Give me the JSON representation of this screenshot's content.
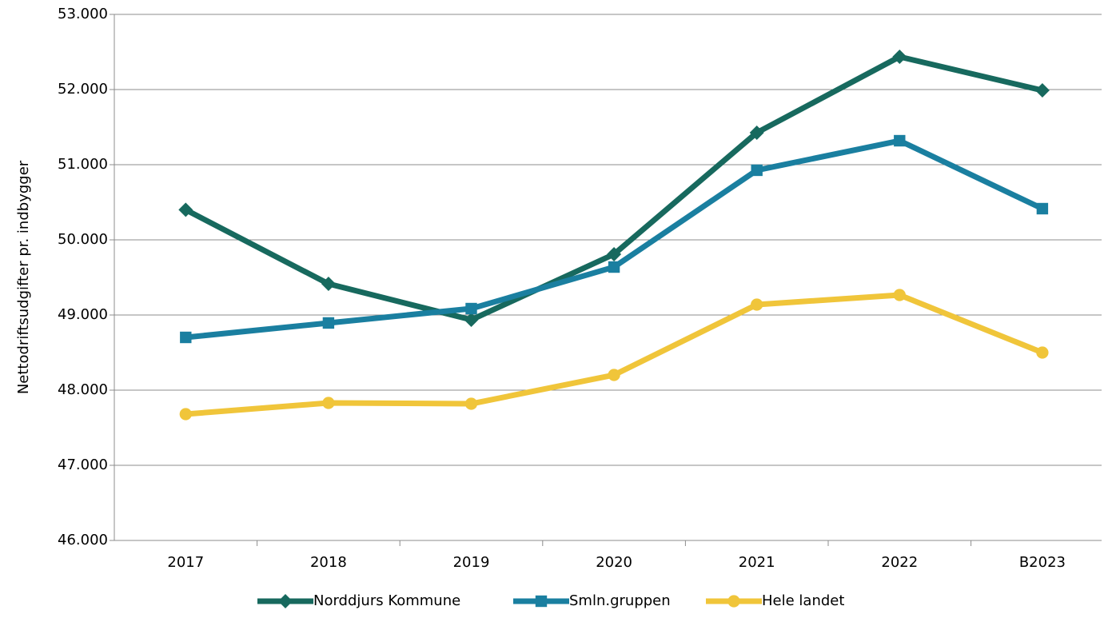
{
  "chart_data": {
    "type": "line",
    "y_label": "Nettodriftsudgifter pr. indbygger",
    "categories": [
      "2017",
      "2018",
      "2019",
      "2020",
      "2021",
      "2022",
      "B2023"
    ],
    "series": [
      {
        "name": "Norddjurs Kommune",
        "color": "#17695e",
        "marker": "diamond",
        "values": [
          50400,
          49415,
          48936,
          49809,
          51426,
          52436,
          51989
        ]
      },
      {
        "name": "Smln.gruppen",
        "color": "#1a7fa0",
        "marker": "square",
        "values": [
          48702,
          48894,
          49085,
          49638,
          50926,
          51319,
          50415
        ]
      },
      {
        "name": "Hele landet",
        "color": "#f0c53a",
        "marker": "circle",
        "values": [
          47681,
          47830,
          47819,
          48202,
          49138,
          49266,
          48500
        ]
      }
    ],
    "ylim": [
      46000,
      53000
    ],
    "yticks": [
      {
        "value": 46000,
        "label": "46.000"
      },
      {
        "value": 47000,
        "label": "47.000"
      },
      {
        "value": 48000,
        "label": "48.000"
      },
      {
        "value": 49000,
        "label": "49.000"
      },
      {
        "value": 50000,
        "label": "50.000"
      },
      {
        "value": 51000,
        "label": "51.000"
      },
      {
        "value": 52000,
        "label": "52.000"
      },
      {
        "value": 53000,
        "label": "53.000"
      }
    ],
    "grid": true,
    "legend": "bottom"
  }
}
